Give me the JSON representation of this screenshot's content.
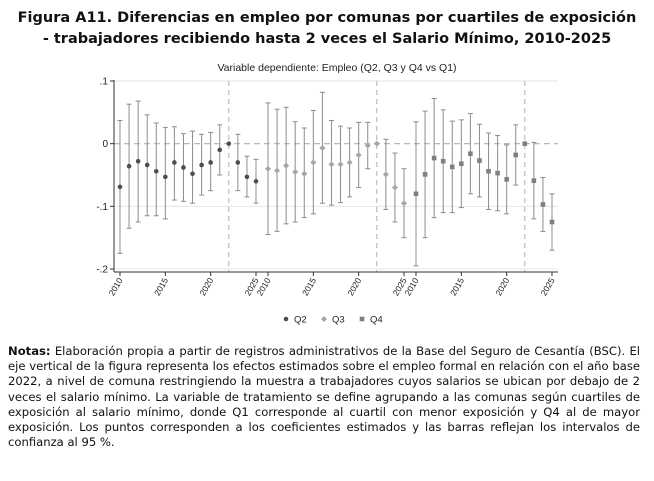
{
  "figure": {
    "title_line1": "Figura A11. Diferencias en empleo por comunas por cuartiles de exposición",
    "title_line2": "- trabajadores recibiendo hasta 2 veces el Salario Mínimo, 2010-2025"
  },
  "notes": {
    "label": "Notas:",
    "text": " Elaboración propia a partir de registros administrativos de la Base del Seguro de Cesantía (BSC). El eje vertical de la figura representa los efectos estimados sobre el empleo formal en relación con el año base 2022, a nivel de comuna restringiendo la muestra a trabajadores cuyos salarios se ubican por debajo de 2 veces el salario mínimo.  La variable de tratamiento se define agrupando a las comunas según cuartiles de exposición al salario mínimo, donde Q1 corresponde al cuartil con menor exposición y Q4 al de mayor exposición. Los puntos corresponden a los coeficientes estimados y las barras reflejan los intervalos de confianza al 95 %."
  },
  "colors": {
    "Q2": "#4d4d4d",
    "Q3": "#a6a6a6",
    "Q4": "#7f7f7f",
    "ci": "#8c8c8c",
    "axis": "#333333",
    "zero_line": "#b0b0b0",
    "divider": "#b0b0b0",
    "grid": "#e6e6e6"
  },
  "chart_data": {
    "type": "scatter",
    "subtitle": "Variable dependiente: Empleo (Q2, Q3 y Q4 vs Q1)",
    "xlabel": "",
    "ylabel": "",
    "ylim": [
      -0.2,
      0.1
    ],
    "y_ticks": [
      0.1,
      0,
      -0.1,
      -0.2
    ],
    "y_tick_labels": [
      ".1",
      "0",
      "-.1",
      "-.2"
    ],
    "x_tick_labels": [
      "2010",
      "2015",
      "2020",
      "2025"
    ],
    "base_year": 2022,
    "legend": [
      "Q2",
      "Q3",
      "Q4"
    ],
    "legend_position": "bottom",
    "series": [
      {
        "name": "Q2",
        "marker": "circle",
        "x": [
          2010,
          2011,
          2012,
          2013,
          2014,
          2015,
          2016,
          2017,
          2018,
          2019,
          2020,
          2021,
          2022,
          2023,
          2024,
          2025
        ],
        "estimate": [
          -0.069,
          -0.036,
          -0.028,
          -0.034,
          -0.044,
          -0.053,
          -0.03,
          -0.038,
          -0.048,
          -0.034,
          -0.03,
          -0.01,
          0.0,
          -0.03,
          -0.053,
          -0.06
        ],
        "ci_low": [
          -0.175,
          -0.135,
          -0.125,
          -0.115,
          -0.115,
          -0.12,
          -0.09,
          -0.092,
          -0.095,
          -0.082,
          -0.075,
          -0.05,
          0.0,
          -0.075,
          -0.085,
          -0.095
        ],
        "ci_high": [
          0.037,
          0.063,
          0.068,
          0.046,
          0.033,
          0.026,
          0.027,
          0.016,
          0.02,
          0.015,
          0.018,
          0.03,
          0.0,
          0.015,
          -0.02,
          -0.025
        ]
      },
      {
        "name": "Q3",
        "marker": "diamond",
        "x": [
          2010,
          2011,
          2012,
          2013,
          2014,
          2015,
          2016,
          2017,
          2018,
          2019,
          2020,
          2021,
          2022,
          2023,
          2024,
          2025
        ],
        "estimate": [
          -0.04,
          -0.043,
          -0.035,
          -0.045,
          -0.048,
          -0.03,
          -0.007,
          -0.033,
          -0.033,
          -0.03,
          -0.018,
          -0.003,
          0.0,
          -0.049,
          -0.07,
          -0.095
        ],
        "ci_low": [
          -0.145,
          -0.14,
          -0.128,
          -0.125,
          -0.118,
          -0.112,
          -0.095,
          -0.098,
          -0.094,
          -0.085,
          -0.07,
          -0.04,
          0.0,
          -0.105,
          -0.125,
          -0.15
        ],
        "ci_high": [
          0.065,
          0.055,
          0.058,
          0.035,
          0.025,
          0.053,
          0.082,
          0.037,
          0.028,
          0.025,
          0.034,
          0.034,
          0.0,
          0.007,
          -0.015,
          -0.04
        ]
      },
      {
        "name": "Q4",
        "marker": "square",
        "x": [
          2010,
          2011,
          2012,
          2013,
          2014,
          2015,
          2016,
          2017,
          2018,
          2019,
          2020,
          2021,
          2022,
          2023,
          2024,
          2025
        ],
        "estimate": [
          -0.08,
          -0.049,
          -0.023,
          -0.028,
          -0.037,
          -0.032,
          -0.016,
          -0.027,
          -0.044,
          -0.047,
          -0.057,
          -0.018,
          0.0,
          -0.059,
          -0.097,
          -0.125
        ],
        "ci_low": [
          -0.195,
          -0.15,
          -0.118,
          -0.11,
          -0.11,
          -0.102,
          -0.08,
          -0.085,
          -0.105,
          -0.107,
          -0.112,
          -0.066,
          0.0,
          -0.12,
          -0.14,
          -0.17
        ],
        "ci_high": [
          0.035,
          0.052,
          0.072,
          0.054,
          0.036,
          0.038,
          0.048,
          0.031,
          0.017,
          0.013,
          -0.002,
          0.03,
          0.0,
          0.002,
          -0.054,
          -0.08
        ]
      }
    ]
  }
}
